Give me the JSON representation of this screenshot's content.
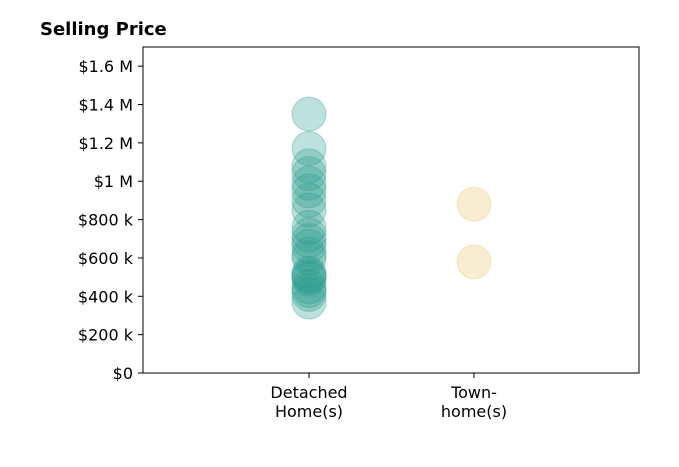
{
  "chart_data": {
    "type": "scatter",
    "title": "Selling Price",
    "xlabel": "",
    "ylabel": "",
    "ylim": [
      0,
      1700000
    ],
    "y_ticks": [
      {
        "value": 0,
        "label": "$0"
      },
      {
        "value": 200000,
        "label": "$200 k"
      },
      {
        "value": 400000,
        "label": "$400 k"
      },
      {
        "value": 600000,
        "label": "$600 k"
      },
      {
        "value": 800000,
        "label": "$800 k"
      },
      {
        "value": 1000000,
        "label": "$1 M"
      },
      {
        "value": 1200000,
        "label": "$1.2 M"
      },
      {
        "value": 1400000,
        "label": "$1.4 M"
      },
      {
        "value": 1600000,
        "label": "$1.6 M"
      }
    ],
    "categories": [
      {
        "key": "detached",
        "label_lines": [
          "Detached",
          "Home(s)"
        ]
      },
      {
        "key": "townhome",
        "label_lines": [
          "Town-",
          "home(s)"
        ]
      }
    ],
    "series": [
      {
        "category": "detached",
        "color": "#2a9d8f",
        "values": [
          1350000,
          1170000,
          1080000,
          1040000,
          990000,
          950000,
          900000,
          850000,
          760000,
          720000,
          690000,
          660000,
          620000,
          600000,
          520000,
          510000,
          500000,
          490000,
          450000,
          430000,
          410000,
          370000
        ]
      },
      {
        "category": "townhome",
        "color": "#e9c46a",
        "values": [
          880000,
          580000
        ]
      }
    ],
    "grid": false,
    "legend": "none"
  }
}
